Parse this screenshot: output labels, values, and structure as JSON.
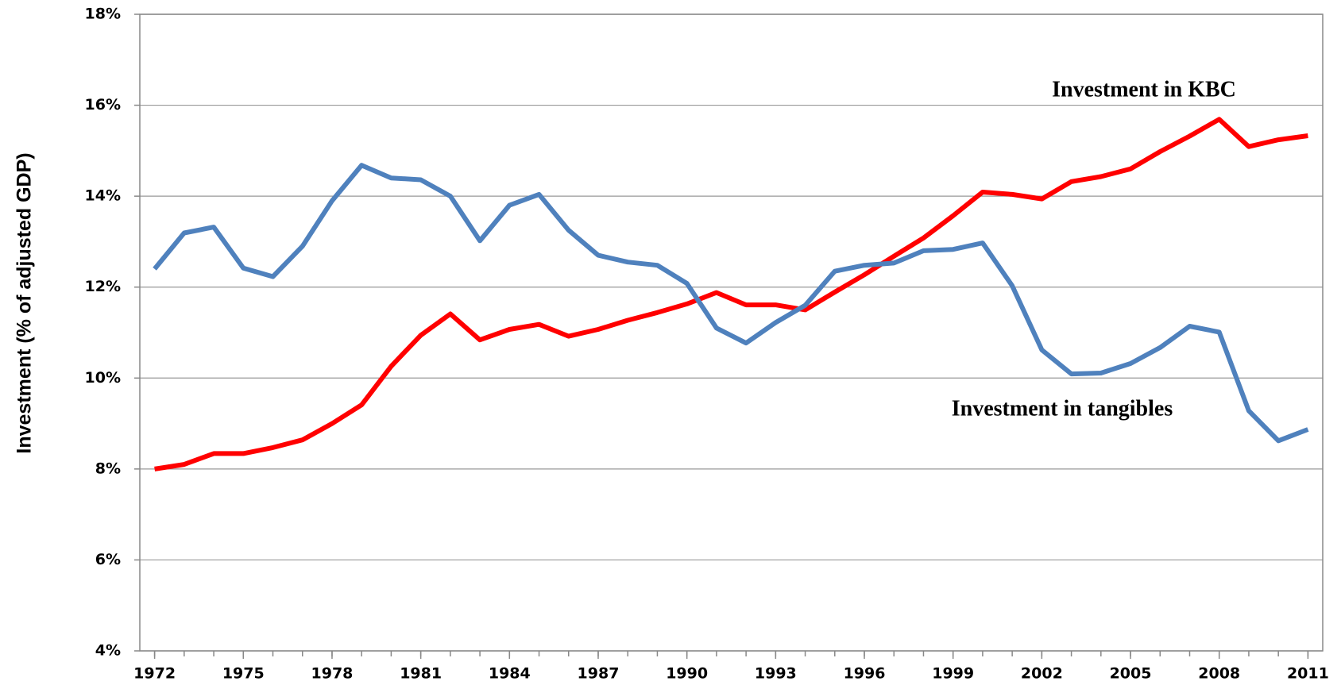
{
  "chart_data": {
    "type": "line",
    "y_axis_label": "Investment (% of adjusted GDP)",
    "x": [
      1972,
      1973,
      1974,
      1975,
      1976,
      1977,
      1978,
      1979,
      1980,
      1981,
      1982,
      1983,
      1984,
      1985,
      1986,
      1987,
      1988,
      1989,
      1990,
      1991,
      1992,
      1993,
      1994,
      1995,
      1996,
      1997,
      1998,
      1999,
      2000,
      2001,
      2002,
      2003,
      2004,
      2005,
      2006,
      2007,
      2008,
      2009,
      2010,
      2011
    ],
    "series": [
      {
        "name": "Investment in KBC",
        "color": "#ff0000",
        "values": [
          8.0,
          8.1,
          8.34,
          8.34,
          8.47,
          8.64,
          9.0,
          9.41,
          10.26,
          10.94,
          11.41,
          10.84,
          11.07,
          11.18,
          10.92,
          11.07,
          11.27,
          11.44,
          11.63,
          11.88,
          11.61,
          11.61,
          11.5,
          11.89,
          12.27,
          12.68,
          13.08,
          13.57,
          14.09,
          14.04,
          13.94,
          14.32,
          14.43,
          14.6,
          14.98,
          15.32,
          15.69,
          15.09,
          15.24,
          15.33
        ]
      },
      {
        "name": "Investment in tangibles",
        "color": "#4f81bd",
        "values": [
          12.4,
          13.19,
          13.32,
          12.42,
          12.23,
          12.9,
          13.9,
          14.68,
          14.4,
          14.36,
          14.0,
          13.02,
          13.8,
          14.04,
          13.25,
          12.7,
          12.55,
          12.48,
          12.08,
          11.1,
          10.77,
          11.22,
          11.6,
          12.35,
          12.48,
          12.53,
          12.8,
          12.83,
          12.97,
          12.03,
          10.62,
          10.09,
          10.11,
          10.32,
          10.67,
          11.14,
          11.01,
          9.28,
          8.62,
          8.87
        ]
      }
    ],
    "xlim": [
      1971.5,
      2011.5
    ],
    "xticks": [
      1972,
      1975,
      1978,
      1981,
      1984,
      1987,
      1990,
      1993,
      1996,
      1999,
      2002,
      2005,
      2008,
      2011
    ],
    "ylim": [
      4,
      18
    ],
    "yticks": [
      {
        "value": 4,
        "label": "4%"
      },
      {
        "value": 6,
        "label": "6%"
      },
      {
        "value": 8,
        "label": "8%"
      },
      {
        "value": 10,
        "label": "10%"
      },
      {
        "value": 12,
        "label": "12%"
      },
      {
        "value": 14,
        "label": "14%"
      },
      {
        "value": 16,
        "label": "16%"
      },
      {
        "value": 18,
        "label": "18%"
      }
    ],
    "grid": true
  }
}
